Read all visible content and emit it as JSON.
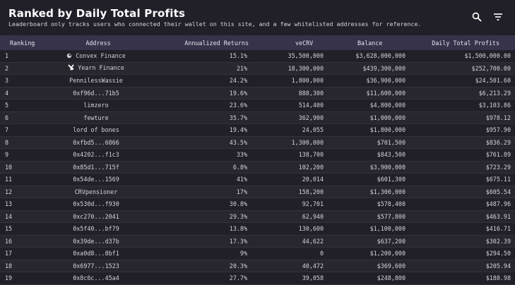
{
  "header": {
    "title": "Ranked by Daily Total Profits",
    "subtitle": "Leaderboard only tracks users who connected their wallet on this site, and a few whitelisted addresses for reference."
  },
  "columns": {
    "rank": "Ranking",
    "address": "Address",
    "returns": "Annualized Returns",
    "vecrv": "veCRV",
    "balance": "Balance",
    "profits": "Daily Total Profits"
  },
  "rows": [
    {
      "rank": "1",
      "address": "Convex Finance",
      "icon": "convex-logo-icon",
      "returns": "15.1%",
      "vecrv": "35,500,000",
      "balance": "$3,628,000,000",
      "profits": "$1,500,000.00"
    },
    {
      "rank": "2",
      "address": "Yearn Finance",
      "icon": "yearn-logo-icon",
      "returns": "21%",
      "vecrv": "18,300,000",
      "balance": "$439,300,000",
      "profits": "$252,700.00"
    },
    {
      "rank": "3",
      "address": "PennilessWassie",
      "returns": "24.2%",
      "vecrv": "1,800,000",
      "balance": "$36,900,000",
      "profits": "$24,501.60"
    },
    {
      "rank": "4",
      "address": "0xf96d...71b5",
      "returns": "19.6%",
      "vecrv": "888,300",
      "balance": "$11,600,000",
      "profits": "$6,213.29"
    },
    {
      "rank": "5",
      "address": "limzero",
      "returns": "23.6%",
      "vecrv": "514,400",
      "balance": "$4,800,000",
      "profits": "$3,103.86"
    },
    {
      "rank": "6",
      "address": "fewture",
      "returns": "35.7%",
      "vecrv": "362,900",
      "balance": "$1,000,000",
      "profits": "$978.12"
    },
    {
      "rank": "7",
      "address": "lord of bones",
      "returns": "19.4%",
      "vecrv": "24,055",
      "balance": "$1,800,000",
      "profits": "$957.90"
    },
    {
      "rank": "8",
      "address": "0xfbd5...6866",
      "returns": "43.5%",
      "vecrv": "1,300,000",
      "balance": "$701,500",
      "profits": "$836.29"
    },
    {
      "rank": "9",
      "address": "0x4202...f1c3",
      "returns": "33%",
      "vecrv": "138,700",
      "balance": "$843,500",
      "profits": "$761.89"
    },
    {
      "rank": "10",
      "address": "0x85d1...715f",
      "returns": "6.8%",
      "vecrv": "102,200",
      "balance": "$3,900,000",
      "profits": "$723.29"
    },
    {
      "rank": "11",
      "address": "0x54de...1569",
      "returns": "41%",
      "vecrv": "20,014",
      "balance": "$601,300",
      "profits": "$675.11"
    },
    {
      "rank": "12",
      "address": "CRVpensioner",
      "returns": "17%",
      "vecrv": "158,200",
      "balance": "$1,300,000",
      "profits": "$605.54"
    },
    {
      "rank": "13",
      "address": "0x530d...f930",
      "returns": "30.8%",
      "vecrv": "92,701",
      "balance": "$578,400",
      "profits": "$487.96"
    },
    {
      "rank": "14",
      "address": "0xc270...2041",
      "returns": "29.3%",
      "vecrv": "62,940",
      "balance": "$577,800",
      "profits": "$463.91"
    },
    {
      "rank": "15",
      "address": "0x5f40...bf79",
      "returns": "13.8%",
      "vecrv": "130,600",
      "balance": "$1,100,000",
      "profits": "$416.71"
    },
    {
      "rank": "16",
      "address": "0x39de...d37b",
      "returns": "17.3%",
      "vecrv": "44,622",
      "balance": "$637,200",
      "profits": "$302.39"
    },
    {
      "rank": "17",
      "address": "0xa0d8...8bf1",
      "returns": "9%",
      "vecrv": "0",
      "balance": "$1,200,000",
      "profits": "$294.50"
    },
    {
      "rank": "18",
      "address": "0x6977...1523",
      "returns": "20.3%",
      "vecrv": "40,472",
      "balance": "$369,600",
      "profits": "$205.94"
    },
    {
      "rank": "19",
      "address": "0x8c6c...45a4",
      "returns": "27.7%",
      "vecrv": "39,058",
      "balance": "$248,800",
      "profits": "$188.98"
    }
  ]
}
